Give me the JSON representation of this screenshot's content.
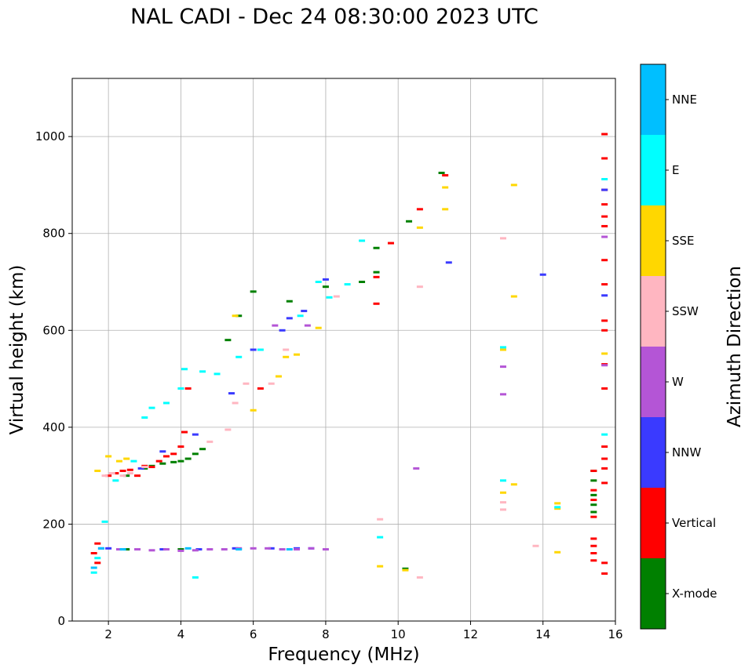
{
  "chart_data": {
    "type": "scatter",
    "title": "NAL CADI - Dec 24 08:30:00 2023 UTC",
    "xlabel": "Frequency (MHz)",
    "ylabel": "Virtual height (km)",
    "xlim": [
      1,
      16
    ],
    "ylim": [
      0,
      1120
    ],
    "xticks": [
      2,
      4,
      6,
      8,
      10,
      12,
      14,
      16
    ],
    "yticks": [
      0,
      200,
      400,
      600,
      800,
      1000
    ],
    "grid": true,
    "colorbar": {
      "label": "Azimuth Direction",
      "categories": [
        {
          "name": "X-mode",
          "color": "#008000"
        },
        {
          "name": "Vertical",
          "color": "#ff0000"
        },
        {
          "name": "NNW",
          "color": "#3a3aff"
        },
        {
          "name": "W",
          "color": "#b455d6"
        },
        {
          "name": "SSW",
          "color": "#ffb6c1"
        },
        {
          "name": "SSE",
          "color": "#ffd700"
        },
        {
          "name": "E",
          "color": "#00ffff"
        },
        {
          "name": "NNE",
          "color": "#00bfff"
        }
      ]
    },
    "series": [
      {
        "name": "X-mode",
        "points": [
          [
            2.5,
            300
          ],
          [
            3.0,
            315
          ],
          [
            3.2,
            320
          ],
          [
            3.5,
            325
          ],
          [
            3.8,
            328
          ],
          [
            4.0,
            330
          ],
          [
            4.2,
            335
          ],
          [
            4.4,
            345
          ],
          [
            4.6,
            355
          ],
          [
            5.3,
            580
          ],
          [
            5.6,
            630
          ],
          [
            6.0,
            680
          ],
          [
            7.0,
            660
          ],
          [
            8.0,
            690
          ],
          [
            9.0,
            700
          ],
          [
            9.4,
            770
          ],
          [
            9.4,
            720
          ],
          [
            10.2,
            108
          ],
          [
            10.3,
            825
          ],
          [
            11.2,
            925
          ],
          [
            15.4,
            310
          ],
          [
            15.4,
            290
          ],
          [
            15.4,
            260
          ],
          [
            15.4,
            240
          ],
          [
            15.4,
            225
          ],
          [
            4.0,
            148
          ],
          [
            2.5,
            148
          ]
        ]
      },
      {
        "name": "Vertical",
        "points": [
          [
            1.6,
            140
          ],
          [
            1.7,
            160
          ],
          [
            1.7,
            120
          ],
          [
            2.0,
            300
          ],
          [
            2.2,
            305
          ],
          [
            2.4,
            310
          ],
          [
            2.6,
            312
          ],
          [
            2.8,
            300
          ],
          [
            3.0,
            320
          ],
          [
            3.2,
            318
          ],
          [
            3.4,
            330
          ],
          [
            3.6,
            340
          ],
          [
            3.8,
            345
          ],
          [
            4.0,
            360
          ],
          [
            4.1,
            390
          ],
          [
            4.2,
            480
          ],
          [
            6.2,
            480
          ],
          [
            9.4,
            655
          ],
          [
            9.4,
            710
          ],
          [
            9.8,
            780
          ],
          [
            10.6,
            850
          ],
          [
            11.3,
            920
          ],
          [
            15.4,
            310
          ],
          [
            15.4,
            270
          ],
          [
            15.4,
            250
          ],
          [
            15.4,
            215
          ],
          [
            15.4,
            170
          ],
          [
            15.4,
            155
          ],
          [
            15.4,
            140
          ],
          [
            15.4,
            125
          ],
          [
            15.7,
            1005
          ],
          [
            15.7,
            955
          ],
          [
            15.7,
            890
          ],
          [
            15.7,
            860
          ],
          [
            15.7,
            835
          ],
          [
            15.7,
            815
          ],
          [
            15.7,
            745
          ],
          [
            15.7,
            695
          ],
          [
            15.7,
            620
          ],
          [
            15.7,
            600
          ],
          [
            15.7,
            530
          ],
          [
            15.7,
            480
          ],
          [
            15.7,
            360
          ],
          [
            15.7,
            335
          ],
          [
            15.7,
            315
          ],
          [
            15.7,
            285
          ],
          [
            15.7,
            120
          ],
          [
            15.7,
            98
          ]
        ]
      },
      {
        "name": "NNW",
        "points": [
          [
            2.0,
            150
          ],
          [
            3.5,
            148
          ],
          [
            4.5,
            148
          ],
          [
            5.5,
            150
          ],
          [
            6.5,
            150
          ],
          [
            7.2,
            150
          ],
          [
            7.6,
            150
          ],
          [
            8.0,
            705
          ],
          [
            2.9,
            315
          ],
          [
            3.5,
            350
          ],
          [
            4.4,
            385
          ],
          [
            5.4,
            470
          ],
          [
            6.0,
            560
          ],
          [
            6.8,
            600
          ],
          [
            7.0,
            625
          ],
          [
            7.4,
            640
          ],
          [
            11.4,
            740
          ],
          [
            14.0,
            715
          ],
          [
            15.7,
            890
          ],
          [
            15.7,
            672
          ]
        ]
      },
      {
        "name": "W",
        "points": [
          [
            1.8,
            150
          ],
          [
            2.3,
            148
          ],
          [
            2.8,
            148
          ],
          [
            3.2,
            146
          ],
          [
            3.6,
            148
          ],
          [
            4.0,
            145
          ],
          [
            4.4,
            146
          ],
          [
            4.8,
            148
          ],
          [
            5.2,
            148
          ],
          [
            5.6,
            150
          ],
          [
            6.0,
            150
          ],
          [
            6.4,
            150
          ],
          [
            6.8,
            148
          ],
          [
            7.2,
            148
          ],
          [
            7.6,
            150
          ],
          [
            8.0,
            148
          ],
          [
            6.6,
            610
          ],
          [
            7.5,
            610
          ],
          [
            10.5,
            315
          ],
          [
            12.9,
            525
          ],
          [
            12.9,
            468
          ],
          [
            15.7,
            793
          ],
          [
            15.7,
            528
          ]
        ]
      },
      {
        "name": "SSW",
        "points": [
          [
            1.9,
            300
          ],
          [
            2.1,
            305
          ],
          [
            2.4,
            300
          ],
          [
            2.6,
            305
          ],
          [
            3.0,
            318
          ],
          [
            4.8,
            370
          ],
          [
            5.3,
            395
          ],
          [
            5.5,
            450
          ],
          [
            5.8,
            490
          ],
          [
            6.5,
            490
          ],
          [
            6.9,
            560
          ],
          [
            8.3,
            670
          ],
          [
            9.5,
            210
          ],
          [
            10.6,
            690
          ],
          [
            10.6,
            90
          ],
          [
            12.9,
            790
          ],
          [
            12.9,
            245
          ],
          [
            12.9,
            230
          ],
          [
            13.8,
            155
          ]
        ]
      },
      {
        "name": "SSE",
        "points": [
          [
            1.7,
            310
          ],
          [
            2.0,
            340
          ],
          [
            2.3,
            330
          ],
          [
            2.5,
            335
          ],
          [
            5.5,
            630
          ],
          [
            6.0,
            435
          ],
          [
            6.7,
            505
          ],
          [
            6.9,
            545
          ],
          [
            7.2,
            550
          ],
          [
            7.8,
            605
          ],
          [
            9.5,
            113
          ],
          [
            10.2,
            105
          ],
          [
            10.6,
            812
          ],
          [
            11.3,
            895
          ],
          [
            11.3,
            850
          ],
          [
            12.9,
            265
          ],
          [
            12.9,
            560
          ],
          [
            13.2,
            900
          ],
          [
            13.2,
            670
          ],
          [
            13.2,
            282
          ],
          [
            14.4,
            243
          ],
          [
            14.4,
            232
          ],
          [
            14.4,
            142
          ],
          [
            15.7,
            552
          ]
        ]
      },
      {
        "name": "E",
        "points": [
          [
            1.6,
            100
          ],
          [
            1.7,
            130
          ],
          [
            1.9,
            205
          ],
          [
            2.2,
            290
          ],
          [
            2.7,
            330
          ],
          [
            3.0,
            420
          ],
          [
            3.2,
            440
          ],
          [
            3.6,
            450
          ],
          [
            4.0,
            480
          ],
          [
            4.1,
            520
          ],
          [
            4.6,
            515
          ],
          [
            5.0,
            510
          ],
          [
            5.6,
            545
          ],
          [
            6.2,
            560
          ],
          [
            7.3,
            630
          ],
          [
            7.8,
            700
          ],
          [
            8.1,
            668
          ],
          [
            8.6,
            695
          ],
          [
            9.0,
            785
          ],
          [
            9.5,
            173
          ],
          [
            12.9,
            565
          ],
          [
            12.9,
            290
          ],
          [
            14.4,
            235
          ],
          [
            15.7,
            912
          ],
          [
            15.7,
            385
          ],
          [
            4.4,
            90
          ]
        ]
      },
      {
        "name": "NNE",
        "points": [
          [
            1.6,
            110
          ],
          [
            1.8,
            150
          ],
          [
            2.4,
            148
          ],
          [
            4.2,
            150
          ],
          [
            5.6,
            148
          ],
          [
            7.0,
            148
          ]
        ]
      }
    ]
  }
}
